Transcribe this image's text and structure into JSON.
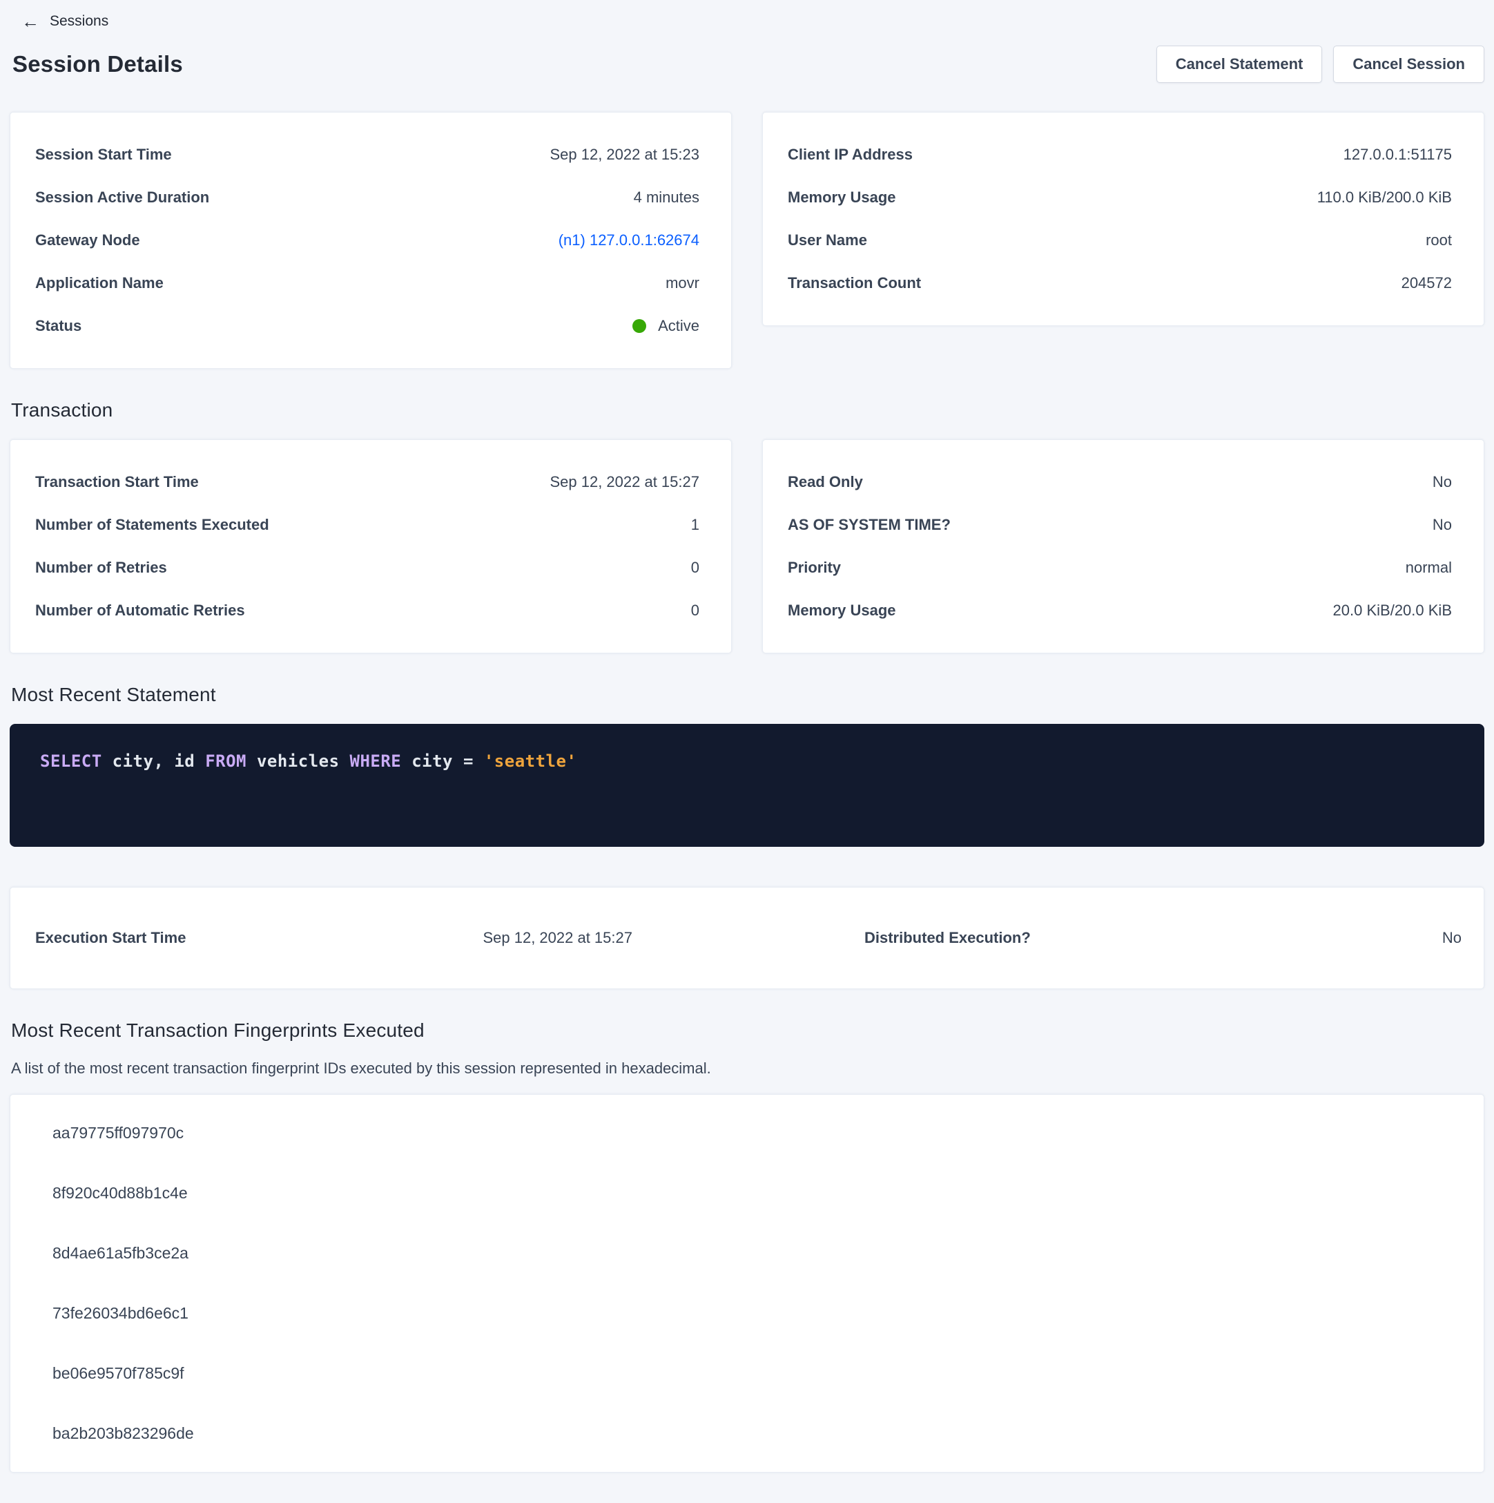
{
  "colors": {
    "page_background": "#f4f6fa",
    "link_blue": "#0b5fff",
    "status_green": "#37a806",
    "code_background": "#121a2e",
    "code_keyword": "#c9abf5",
    "code_string": "#efa43c",
    "code_text": "#e3e8ee"
  },
  "breadcrumb": {
    "label": "Sessions",
    "back_icon": "arrow-left",
    "back_glyph": "←"
  },
  "header": {
    "title": "Session Details",
    "cancel_statement_label": "Cancel Statement",
    "cancel_session_label": "Cancel Session"
  },
  "session": {
    "left": [
      {
        "label": "Session Start Time",
        "value": "Sep 12, 2022 at 15:23"
      },
      {
        "label": "Session Active Duration",
        "value": "4 minutes"
      },
      {
        "label": "Gateway Node",
        "value": "(n1) 127.0.0.1:62674"
      },
      {
        "label": "Application Name",
        "value": "movr"
      },
      {
        "label": "Status",
        "value": "Active"
      }
    ],
    "right": [
      {
        "label": "Client IP Address",
        "value": "127.0.0.1:51175"
      },
      {
        "label": "Memory Usage",
        "value": "110.0 KiB/200.0 KiB"
      },
      {
        "label": "User Name",
        "value": "root"
      },
      {
        "label": "Transaction Count",
        "value": "204572"
      }
    ]
  },
  "transaction": {
    "heading": "Transaction",
    "left": [
      {
        "label": "Transaction Start Time",
        "value": "Sep 12, 2022 at 15:27"
      },
      {
        "label": "Number of Statements Executed",
        "value": "1"
      },
      {
        "label": "Number of Retries",
        "value": "0"
      },
      {
        "label": "Number of Automatic Retries",
        "value": "0"
      }
    ],
    "right": [
      {
        "label": "Read Only",
        "value": "No"
      },
      {
        "label": "AS OF SYSTEM TIME?",
        "value": "No"
      },
      {
        "label": "Priority",
        "value": "normal"
      },
      {
        "label": "Memory Usage",
        "value": "20.0 KiB/20.0 KiB"
      }
    ]
  },
  "statement": {
    "heading": "Most Recent Statement",
    "sql_text": "SELECT city, id FROM vehicles WHERE city = 'seattle'",
    "tokens": [
      {
        "text": "SELECT",
        "type": "keyword"
      },
      {
        "text": " city, id ",
        "type": "plain"
      },
      {
        "text": "FROM",
        "type": "keyword"
      },
      {
        "text": " vehicles ",
        "type": "plain"
      },
      {
        "text": "WHERE",
        "type": "keyword"
      },
      {
        "text": " city = ",
        "type": "plain"
      },
      {
        "text": "'seattle'",
        "type": "string"
      }
    ]
  },
  "execution": {
    "start_time_label": "Execution Start Time",
    "start_time_value": "Sep 12, 2022 at 15:27",
    "distributed_label": "Distributed Execution?",
    "distributed_value": "No"
  },
  "fingerprints": {
    "heading": "Most Recent Transaction Fingerprints Executed",
    "description": "A list of the most recent transaction fingerprint IDs executed by this session represented in hexadecimal.",
    "items": [
      "aa79775ff097970c",
      "8f920c40d88b1c4e",
      "8d4ae61a5fb3ce2a",
      "73fe26034bd6e6c1",
      "be06e9570f785c9f",
      "ba2b203b823296de"
    ]
  }
}
